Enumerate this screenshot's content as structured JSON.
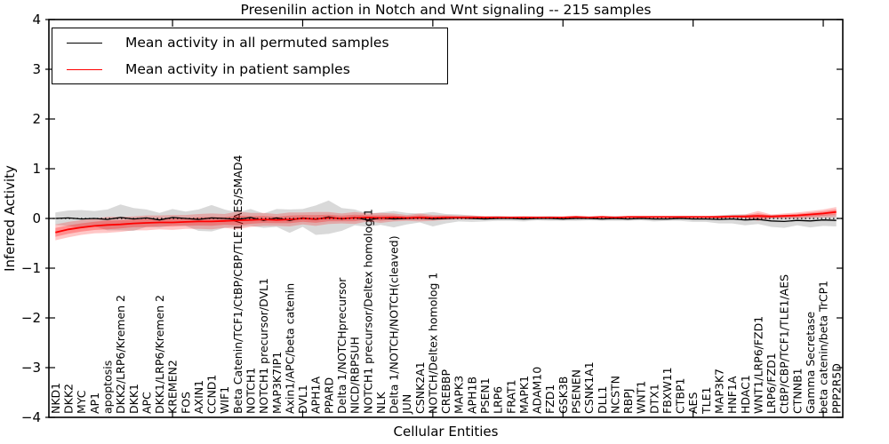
{
  "figure": {
    "title": "Presenilin action in Notch and Wnt signaling -- 215 samples",
    "xlabel": "Cellular Entities",
    "ylabel": "Inferred Activity"
  },
  "chart_data": {
    "type": "line",
    "title": "Presenilin action in Notch and Wnt signaling -- 215 samples",
    "xlabel": "Cellular Entities",
    "ylabel": "Inferred Activity",
    "ylim": [
      -4,
      4
    ],
    "yticks": [
      -4,
      -3,
      -2,
      -1,
      0,
      1,
      2,
      3,
      4
    ],
    "grid": false,
    "legend_position": "upper left",
    "zero_line": true,
    "x_major_ticks_at_category_index": [
      9,
      19,
      29,
      39,
      49,
      59
    ],
    "categories": [
      "NKD1",
      "DKK2",
      "MYC",
      "AP1",
      "apoptosis",
      "DKK2/LRP6/Kremen 2",
      "DKK1",
      "APC",
      "DKK1/LRP6/Kremen 2",
      "KREMEN2",
      "FOS",
      "AXIN1",
      "CCND1",
      "WIF1",
      "Beta Catenin/TCF1/CtBP/CBP/TLE1/AES/SMAD4",
      "NOTCH1",
      "NOTCH1 precursor/DVL1",
      "MAP3K7IP1",
      "Axin1/APC/beta catenin",
      "DVL1",
      "APH1A",
      "PPARD",
      "Delta 1/NOTCHprecursor",
      "NICD/RBPSUH",
      "NOTCH1 precursor/Deltex homolog 1",
      "NLK",
      "Delta 1/NOTCH/NOTCH(cleaved)",
      "JUN",
      "CSNK2A1",
      "NOTCH/Deltex homolog 1",
      "CREBBP",
      "MAPK3",
      "APH1B",
      "PSEN1",
      "LRP6",
      "FRAT1",
      "MAPK1",
      "ADAM10",
      "FZD1",
      "GSK3B",
      "PSENEN",
      "CSNK1A1",
      "DLL1",
      "NCSTN",
      "RBPJ",
      "WNT1",
      "DTX1",
      "FBXW11",
      "CTBP1",
      "AES",
      "TLE1",
      "MAP3K7",
      "HNF1A",
      "HDAC1",
      "WNT1/LRP6/FZD1",
      "LRP6/FZD1",
      "CtBP/CBP/TCF1/TLE1/AES",
      "CTNNB1",
      "Gamma Secretase",
      "beta catenin/beta TrCP1",
      "PPP2R5D"
    ],
    "series": [
      {
        "name": "Mean activity in all permuted samples",
        "color": "#000000",
        "band_color": "#000000",
        "band_opacity": 0.15,
        "values": [
          0.0,
          0.01,
          -0.01,
          0.0,
          -0.02,
          0.02,
          -0.01,
          0.01,
          -0.03,
          0.02,
          0.0,
          -0.02,
          0.01,
          0.0,
          -0.02,
          0.02,
          -0.04,
          0.01,
          -0.04,
          0.01,
          -0.02,
          0.03,
          -0.01,
          0.02,
          -0.03,
          0.01,
          -0.01,
          0.0,
          0.01,
          -0.01,
          0.0,
          0.01,
          0.0,
          -0.01,
          0.0,
          0.0,
          -0.01,
          0.0,
          0.0,
          -0.01,
          0.0,
          0.0,
          -0.01,
          0.0,
          -0.01,
          0.0,
          -0.01,
          -0.01,
          0.0,
          -0.01,
          -0.01,
          -0.02,
          -0.01,
          -0.03,
          -0.02,
          -0.05,
          -0.06,
          -0.04,
          -0.05,
          -0.03,
          -0.04
        ],
        "band_upper": [
          0.12,
          0.16,
          0.17,
          0.15,
          0.18,
          0.28,
          0.21,
          0.18,
          0.11,
          0.19,
          0.14,
          0.18,
          0.27,
          0.18,
          0.12,
          0.19,
          0.1,
          0.19,
          0.18,
          0.19,
          0.26,
          0.36,
          0.21,
          0.18,
          0.1,
          0.12,
          0.15,
          0.11,
          0.1,
          0.13,
          0.09,
          0.08,
          0.06,
          0.04,
          0.05,
          0.04,
          0.04,
          0.04,
          0.05,
          0.03,
          0.05,
          0.04,
          0.03,
          0.05,
          0.03,
          0.04,
          0.04,
          0.03,
          0.05,
          0.05,
          0.04,
          0.06,
          0.08,
          0.08,
          0.07,
          0.07,
          0.07,
          0.06,
          0.08,
          0.08,
          0.08
        ],
        "band_lower": [
          -0.13,
          -0.15,
          -0.2,
          -0.16,
          -0.24,
          -0.24,
          -0.25,
          -0.17,
          -0.18,
          -0.14,
          -0.15,
          -0.25,
          -0.26,
          -0.19,
          -0.17,
          -0.15,
          -0.19,
          -0.17,
          -0.29,
          -0.17,
          -0.33,
          -0.31,
          -0.25,
          -0.14,
          -0.17,
          -0.13,
          -0.18,
          -0.12,
          -0.08,
          -0.16,
          -0.1,
          -0.06,
          -0.07,
          -0.06,
          -0.05,
          -0.05,
          -0.06,
          -0.04,
          -0.05,
          -0.05,
          -0.05,
          -0.04,
          -0.05,
          -0.05,
          -0.05,
          -0.04,
          -0.06,
          -0.05,
          -0.05,
          -0.07,
          -0.07,
          -0.1,
          -0.1,
          -0.14,
          -0.11,
          -0.17,
          -0.19,
          -0.14,
          -0.18,
          -0.15,
          -0.16
        ]
      },
      {
        "name": "Mean activity in patient samples",
        "color": "#ff0000",
        "band_color": "#ff0000",
        "band_opacity": 0.22,
        "values": [
          -0.28,
          -0.22,
          -0.18,
          -0.15,
          -0.13,
          -0.12,
          -0.1,
          -0.09,
          -0.08,
          -0.08,
          -0.07,
          -0.06,
          -0.06,
          -0.05,
          -0.04,
          -0.03,
          -0.02,
          -0.03,
          -0.02,
          0.0,
          -0.01,
          0.01,
          0.0,
          0.01,
          0.02,
          0.01,
          0.02,
          0.01,
          0.02,
          0.01,
          0.02,
          0.02,
          0.02,
          0.02,
          0.02,
          0.02,
          0.02,
          0.02,
          0.02,
          0.02,
          0.03,
          0.02,
          0.03,
          0.02,
          0.03,
          0.03,
          0.03,
          0.03,
          0.03,
          0.03,
          0.03,
          0.03,
          0.04,
          0.04,
          0.05,
          0.04,
          0.05,
          0.06,
          0.08,
          0.1,
          0.13
        ],
        "band_upper": [
          -0.12,
          -0.07,
          -0.03,
          0.0,
          0.03,
          0.03,
          0.04,
          0.06,
          0.06,
          0.07,
          0.07,
          0.09,
          0.1,
          0.09,
          0.14,
          0.11,
          0.11,
          0.09,
          0.12,
          0.12,
          0.13,
          0.13,
          0.1,
          0.13,
          0.1,
          0.11,
          0.1,
          0.07,
          0.1,
          0.07,
          0.07,
          0.06,
          0.06,
          0.05,
          0.05,
          0.04,
          0.05,
          0.04,
          0.04,
          0.04,
          0.05,
          0.04,
          0.05,
          0.04,
          0.05,
          0.05,
          0.05,
          0.05,
          0.05,
          0.05,
          0.05,
          0.06,
          0.07,
          0.08,
          0.15,
          0.08,
          0.1,
          0.12,
          0.15,
          0.18,
          0.23
        ],
        "band_lower": [
          -0.44,
          -0.38,
          -0.33,
          -0.3,
          -0.29,
          -0.27,
          -0.24,
          -0.24,
          -0.22,
          -0.23,
          -0.21,
          -0.21,
          -0.22,
          -0.19,
          -0.22,
          -0.17,
          -0.15,
          -0.15,
          -0.16,
          -0.12,
          -0.15,
          -0.11,
          -0.1,
          -0.11,
          -0.06,
          -0.09,
          -0.06,
          -0.05,
          -0.06,
          -0.05,
          -0.03,
          -0.02,
          -0.02,
          -0.01,
          -0.01,
          0.0,
          -0.01,
          0.0,
          0.0,
          0.0,
          0.01,
          0.0,
          0.01,
          0.0,
          0.01,
          0.01,
          0.01,
          0.01,
          0.01,
          0.01,
          0.01,
          0.0,
          0.01,
          0.0,
          -0.05,
          0.0,
          0.0,
          0.0,
          0.01,
          0.02,
          0.03
        ]
      }
    ]
  }
}
